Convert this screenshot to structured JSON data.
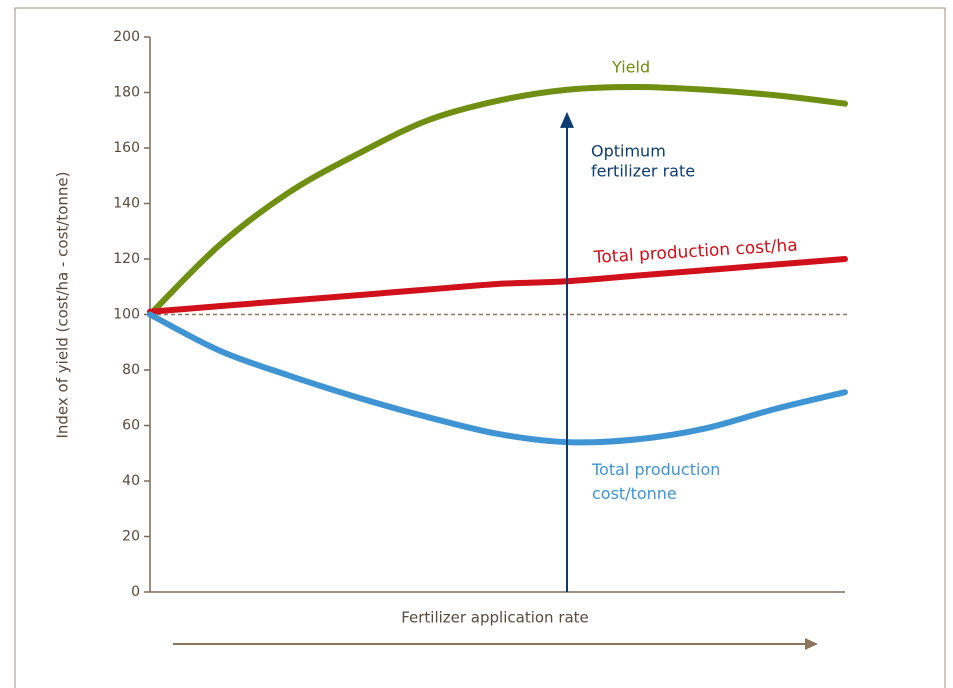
{
  "chart_data": {
    "type": "line",
    "y_label": "Index of yield (cost/ha - cost/tonne)",
    "x_label": "Fertilizer application rate",
    "x": [
      0,
      1,
      2,
      3,
      4,
      5,
      6,
      7,
      8,
      9,
      10
    ],
    "xlim": [
      0,
      10
    ],
    "ylim": [
      0,
      200
    ],
    "yticks": [
      0,
      20,
      40,
      60,
      80,
      100,
      120,
      140,
      160,
      180,
      200
    ],
    "reference_line": 100,
    "series": [
      {
        "name": "Yield",
        "color": "#6e8f12",
        "values": [
          100,
          125,
          144,
          158,
          170,
          177,
          181,
          182,
          181,
          179,
          176
        ]
      },
      {
        "name": "Total production cost/ha",
        "color": "#d0101a",
        "values": [
          101,
          103,
          105,
          107,
          109,
          111,
          112,
          114,
          116,
          118,
          120
        ]
      },
      {
        "name": "Total production cost/tonne",
        "color": "#3f94d4",
        "values": [
          100,
          87,
          78,
          70,
          63,
          57,
          54,
          55,
          59,
          66,
          72
        ]
      }
    ],
    "optimum": {
      "label": [
        "Optimum",
        "fertilizer rate"
      ],
      "x": 6,
      "y": 173,
      "color": "#0d3c73"
    }
  }
}
